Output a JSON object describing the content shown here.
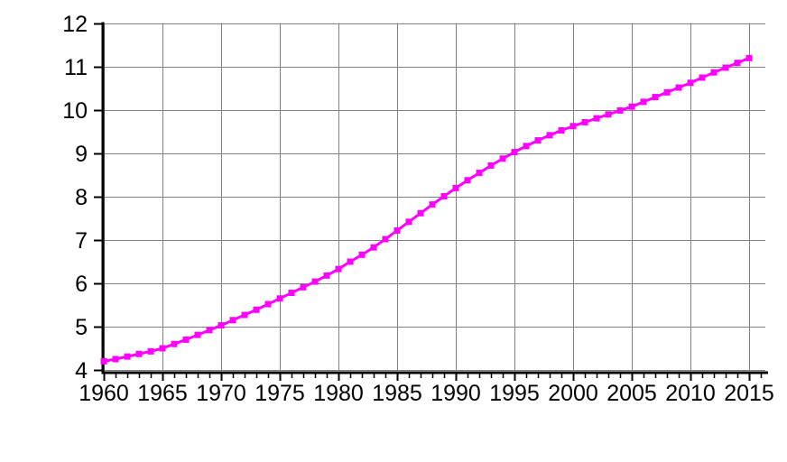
{
  "chart_data": {
    "type": "line",
    "title": "",
    "xlabel": "",
    "ylabel": "",
    "legend": "none",
    "grid": true,
    "background_color": "#FFFFFF",
    "grid_color": "#808080",
    "axis_color": "#000000",
    "tick_label_color": "#000000",
    "xlim": [
      1960,
      2016
    ],
    "ylim": [
      4,
      12
    ],
    "x_ticks_major": [
      1960,
      1965,
      1970,
      1975,
      1980,
      1985,
      1990,
      1995,
      2000,
      2005,
      2010,
      2015
    ],
    "x_tick_labels": [
      "1960",
      "1965",
      "1970",
      "1975",
      "1980",
      "1985",
      "1990",
      "1995",
      "2000",
      "2005",
      "2010",
      "2015"
    ],
    "x_minor_tick_step": 1,
    "y_ticks": [
      4,
      5,
      6,
      7,
      8,
      9,
      10,
      11,
      12
    ],
    "y_tick_labels": [
      "4",
      "5",
      "6",
      "7",
      "8",
      "9",
      "10",
      "11",
      "12"
    ],
    "x": [
      1960,
      1961,
      1962,
      1963,
      1964,
      1965,
      1966,
      1967,
      1968,
      1969,
      1970,
      1971,
      1972,
      1973,
      1974,
      1975,
      1976,
      1977,
      1978,
      1979,
      1980,
      1981,
      1982,
      1983,
      1984,
      1985,
      1986,
      1987,
      1988,
      1989,
      1990,
      1991,
      1992,
      1993,
      1994,
      1995,
      1996,
      1997,
      1998,
      1999,
      2000,
      2001,
      2002,
      2003,
      2004,
      2005,
      2006,
      2007,
      2008,
      2009,
      2010,
      2011,
      2012,
      2013,
      2014,
      2015
    ],
    "series": [
      {
        "name": "value",
        "color": "#FF00FF",
        "marker": "square",
        "values": [
          4.2,
          4.25,
          4.31,
          4.37,
          4.43,
          4.5,
          4.6,
          4.7,
          4.81,
          4.92,
          5.03,
          5.15,
          5.27,
          5.39,
          5.52,
          5.65,
          5.78,
          5.91,
          6.04,
          6.18,
          6.33,
          6.5,
          6.66,
          6.83,
          7.02,
          7.22,
          7.42,
          7.62,
          7.82,
          8.01,
          8.2,
          8.38,
          8.55,
          8.72,
          8.88,
          9.03,
          9.17,
          9.3,
          9.42,
          9.53,
          9.63,
          9.72,
          9.81,
          9.9,
          9.99,
          10.08,
          10.19,
          10.3,
          10.41,
          10.52,
          10.63,
          10.75,
          10.87,
          10.98,
          11.09,
          11.2
        ]
      }
    ]
  }
}
